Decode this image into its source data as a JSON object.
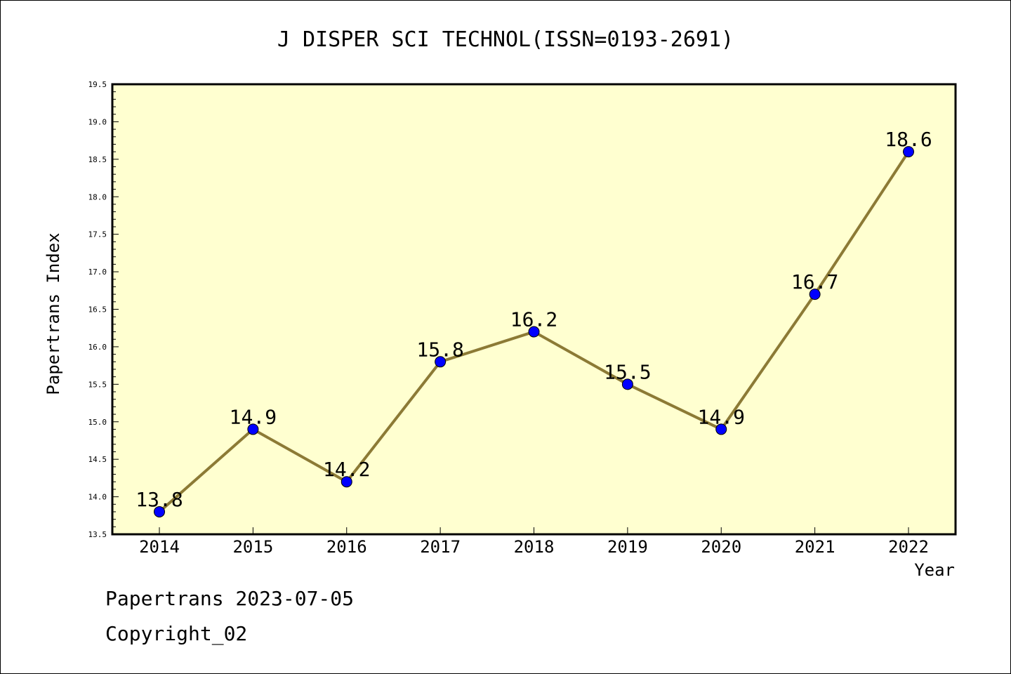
{
  "chart_data": {
    "type": "line",
    "title": "J DISPER SCI TECHNOL(ISSN=0193-2691)",
    "xlabel": "Year",
    "ylabel": "Papertrans Index",
    "x": [
      "2014",
      "2015",
      "2016",
      "2017",
      "2018",
      "2019",
      "2020",
      "2021",
      "2022"
    ],
    "series": [
      {
        "values": [
          13.8,
          14.9,
          14.2,
          15.8,
          16.2,
          15.5,
          14.9,
          16.7,
          18.6
        ]
      }
    ],
    "data_labels": [
      "13.8",
      "14.9",
      "14.2",
      "15.8",
      "16.2",
      "15.5",
      "14.9",
      "16.7",
      "18.6"
    ],
    "ylim": [
      13.5,
      19.5
    ],
    "yticks": [
      "13.5",
      "14.0",
      "14.5",
      "15.0",
      "15.5",
      "16.0",
      "16.5",
      "17.0",
      "17.5",
      "18.0",
      "18.5",
      "19.0",
      "19.5"
    ],
    "grid": false,
    "colors": {
      "plot_bg": "#ffffd0",
      "line": "#8c7a35",
      "marker": "#0000ff"
    }
  },
  "footer": {
    "line1": "Papertrans 2023-07-05",
    "line2": "Copyright_02"
  }
}
